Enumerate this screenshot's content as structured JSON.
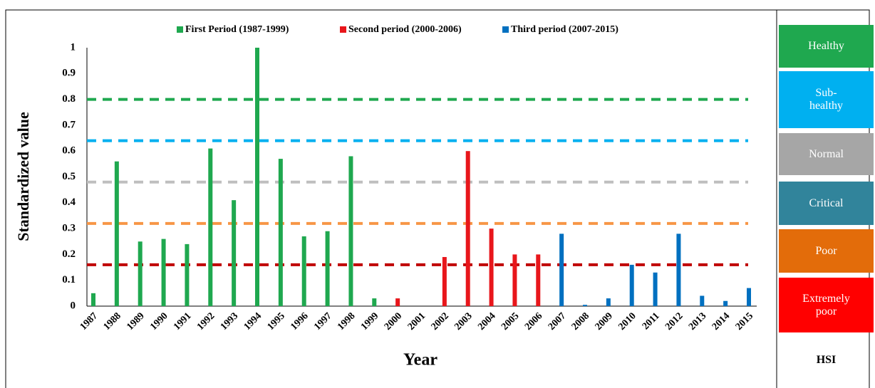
{
  "chart_data": {
    "type": "bar",
    "x_label": "Year",
    "y_label": "Standardized value",
    "categories": [
      "1987",
      "1988",
      "1989",
      "1990",
      "1991",
      "1992",
      "1993",
      "1994",
      "1995",
      "1996",
      "1997",
      "1998",
      "1999",
      "2000",
      "2001",
      "2002",
      "2003",
      "2004",
      "2005",
      "2006",
      "2007",
      "2008",
      "2009",
      "2010",
      "2011",
      "2012",
      "2013",
      "2014",
      "2015"
    ],
    "series": [
      {
        "name": "First Period (1987-1999)",
        "color": "#1fa84f",
        "values": [
          0.05,
          0.56,
          0.25,
          0.26,
          0.24,
          0.61,
          0.41,
          1.0,
          0.57,
          0.27,
          0.29,
          0.58,
          0.03,
          null,
          null,
          null,
          null,
          null,
          null,
          null,
          null,
          null,
          null,
          null,
          null,
          null,
          null,
          null,
          null
        ]
      },
      {
        "name": "Second period (2000-2006)",
        "color": "#e8161b",
        "values": [
          null,
          null,
          null,
          null,
          null,
          null,
          null,
          null,
          null,
          null,
          null,
          null,
          null,
          0.03,
          0,
          0.19,
          0.6,
          0.3,
          0.2,
          0.2,
          null,
          null,
          null,
          null,
          null,
          null,
          null,
          null,
          null
        ]
      },
      {
        "name": "Third period (2007-2015)",
        "color": "#0070c0",
        "values": [
          null,
          null,
          null,
          null,
          null,
          null,
          null,
          null,
          null,
          null,
          null,
          null,
          null,
          null,
          null,
          null,
          null,
          null,
          null,
          null,
          0.28,
          0.005,
          0.03,
          0.16,
          0.13,
          0.28,
          0.04,
          0.02,
          0.07
        ]
      }
    ],
    "ylim": [
      0,
      1
    ],
    "yticks": [
      0,
      0.1,
      0.2,
      0.3,
      0.4,
      0.5,
      0.6,
      0.7,
      0.8,
      0.9,
      1
    ],
    "reference_lines": [
      {
        "value": 0.8,
        "color": "#1fa84f"
      },
      {
        "value": 0.64,
        "color": "#00b0f0"
      },
      {
        "value": 0.48,
        "color": "#bfbfbf"
      },
      {
        "value": 0.32,
        "color": "#f79646"
      },
      {
        "value": 0.16,
        "color": "#c00000"
      }
    ],
    "legend_position": "top",
    "scale": {
      "title": "HSI",
      "levels": [
        {
          "label": "Healthy",
          "color": "#1fa84f"
        },
        {
          "label": "Sub-healthy",
          "color": "#00b0f0"
        },
        {
          "label": "Normal",
          "color": "#a6a6a6"
        },
        {
          "label": "Critical",
          "color": "#31849b"
        },
        {
          "label": "Poor",
          "color": "#e36c0a"
        },
        {
          "label": "Extremely poor",
          "color": "#ff0000"
        }
      ]
    }
  }
}
